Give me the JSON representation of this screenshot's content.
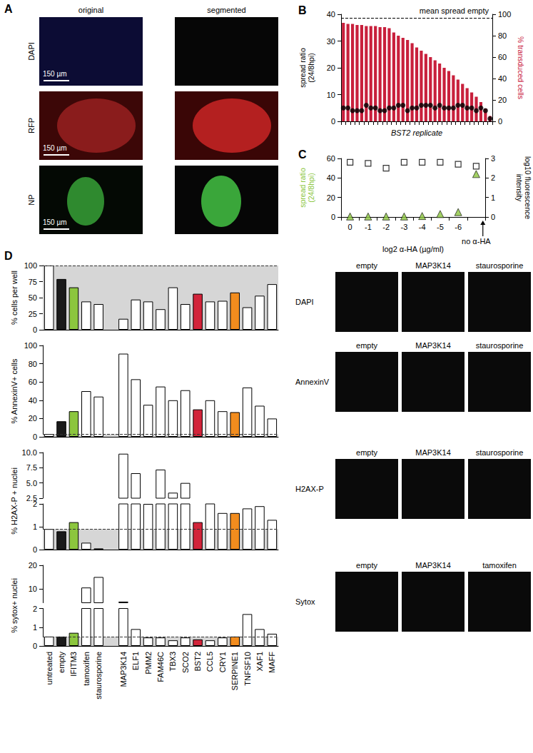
{
  "chart_data": [
    {
      "type": "bar",
      "title": "B",
      "xlabel": "BST2 replicate",
      "ylabel": "spread ratio\n(24/8hpi)",
      "y2label": "% transduced cells",
      "categories": [
        null,
        null,
        null,
        null,
        null,
        null,
        null,
        null,
        null,
        null,
        null,
        null,
        null,
        null,
        null,
        null,
        null,
        null,
        null,
        null,
        null,
        null,
        null,
        null,
        null,
        null,
        null,
        null,
        null,
        null,
        null,
        null,
        null
      ],
      "series": [
        {
          "type": "bar",
          "axis": "y2",
          "color": "#c8203c",
          "values": [
            92,
            91,
            91,
            90,
            90,
            89,
            89,
            89,
            88,
            88,
            87,
            83,
            80,
            78,
            76,
            73,
            69,
            66,
            63,
            60,
            57,
            54,
            50,
            47,
            43,
            39,
            35,
            31,
            27,
            23,
            18,
            12,
            5
          ]
        },
        {
          "type": "scatter",
          "marker": "circle",
          "color": "#000000",
          "values": [
            5,
            5,
            4,
            4,
            4,
            6,
            5,
            5,
            4,
            4,
            5,
            5,
            6,
            6,
            4,
            5,
            5,
            6,
            6,
            6,
            5,
            6,
            5,
            5,
            5,
            6,
            6,
            5,
            5,
            4,
            5,
            4,
            1
          ]
        }
      ],
      "ylim": [
        0,
        40
      ],
      "yticks": [
        0,
        10,
        20,
        30,
        40
      ],
      "y2lim": [
        0,
        100
      ],
      "y2ticks": [
        0,
        20,
        40,
        60,
        80,
        100
      ],
      "annotations": [
        {
          "label": "mean spread empty",
          "y": 38.5,
          "line_style": "dashed"
        }
      ],
      "grid": false
    },
    {
      "type": "scatter",
      "title": "C",
      "xlabel": "log2 α-HA (µg/ml)",
      "ylabel": "spread ratio\n(24/8hpi)",
      "y2label": "log10 fluorescence\nintensity",
      "categories": [
        "0",
        "-1",
        "-2",
        "-3",
        "-4",
        "-5",
        "-6",
        "no α-HA"
      ],
      "series": [
        {
          "marker": "triangle",
          "color": "#8cc63e",
          "values": [
            0.5,
            0.5,
            0.5,
            0.5,
            1,
            3,
            5,
            44
          ]
        },
        {
          "marker": "open_square",
          "color": "#000000",
          "axis": "y2",
          "values": [
            2.8,
            2.75,
            2.5,
            2.8,
            2.8,
            2.8,
            2.7,
            2.6
          ]
        }
      ],
      "ylim": [
        0,
        60
      ],
      "yticks": [
        0,
        20,
        40,
        60
      ],
      "y2lim": [
        0,
        3
      ],
      "y2ticks": [
        0,
        1,
        2,
        3
      ],
      "grid": false
    },
    {
      "type": "bar",
      "title": "D",
      "ylabel": "% cells per well",
      "categories": [
        "untreated",
        "empty",
        "IFITM3",
        "tamoxifen",
        "staurosporine",
        null,
        "MAP3K14",
        "ELF1",
        "PMM2",
        "FAM46C",
        "TBX3",
        "SCO2",
        "BST2",
        "CCL5",
        "CRY1",
        "SERPINE1",
        "TNFSF10",
        "XAF1",
        "MAFF"
      ],
      "values": [
        100,
        79,
        66,
        44,
        40,
        null,
        17,
        47,
        44,
        32,
        66,
        40,
        56,
        44,
        45,
        58,
        35,
        53,
        71
      ],
      "colors": [
        "#ffffff",
        "#1a1a1a",
        "#8cc63e",
        "#ffffff",
        "#ffffff",
        "#ffffff",
        "#ffffff",
        "#ffffff",
        "#ffffff",
        "#ffffff",
        "#ffffff",
        "#ffffff",
        "#d2243a",
        "#ffffff",
        "#ffffff",
        "#f28c1e",
        "#ffffff",
        "#ffffff",
        "#ffffff"
      ],
      "ylim": [
        0,
        100
      ],
      "yticks": [
        0,
        25,
        50,
        75,
        100
      ],
      "reference": 100,
      "tick_labels": "y",
      "grid": false
    },
    {
      "type": "bar",
      "ylabel": "% AnnexinV+ cells",
      "categories": [
        "untreated",
        "empty",
        "IFITM3",
        "tamoxifen",
        "staurosporine",
        null,
        "MAP3K14",
        "ELF1",
        "PMM2",
        "FAM46C",
        "TBX3",
        "SCO2",
        "BST2",
        "CCL5",
        "CRY1",
        "SERPINE1",
        "TNFSF10",
        "XAF1",
        "MAFF"
      ],
      "values": [
        3,
        17,
        28,
        50,
        44,
        null,
        91,
        63,
        35,
        55,
        40,
        51,
        30,
        40,
        28,
        27,
        54,
        34,
        20
      ],
      "colors": [
        "#ffffff",
        "#1a1a1a",
        "#8cc63e",
        "#ffffff",
        "#ffffff",
        "#ffffff",
        "#ffffff",
        "#ffffff",
        "#ffffff",
        "#ffffff",
        "#ffffff",
        "#ffffff",
        "#d2243a",
        "#ffffff",
        "#ffffff",
        "#f28c1e",
        "#ffffff",
        "#ffffff",
        "#ffffff"
      ],
      "ylim": [
        0,
        100
      ],
      "yticks": [
        0,
        20,
        40,
        60,
        80,
        100
      ],
      "reference": 3,
      "tick_labels": "y",
      "grid": false
    },
    {
      "type": "bar",
      "ylabel": "% H2AX-P + nuclei",
      "categories": [
        "untreated",
        "empty",
        "IFITM3",
        "tamoxifen",
        "staurosporine",
        null,
        "MAP3K14",
        "ELF1",
        "PMM2",
        "FAM46C",
        "TBX3",
        "SCO2",
        "BST2",
        "CCL5",
        "CRY1",
        "SERPINE1",
        "TNFSF10",
        "XAF1",
        "MAFF"
      ],
      "values": [
        0.9,
        0.8,
        1.2,
        0.3,
        0.05,
        null,
        9.8,
        6.6,
        2.0,
        7.2,
        3.4,
        5.0,
        1.2,
        2.4,
        1.6,
        1.6,
        1.8,
        1.9,
        1.3
      ],
      "colors": [
        "#ffffff",
        "#1a1a1a",
        "#8cc63e",
        "#ffffff",
        "#ffffff",
        "#ffffff",
        "#ffffff",
        "#ffffff",
        "#ffffff",
        "#ffffff",
        "#ffffff",
        "#ffffff",
        "#d2243a",
        "#ffffff",
        "#ffffff",
        "#f28c1e",
        "#ffffff",
        "#ffffff",
        "#ffffff"
      ],
      "ylim": [
        0,
        10
      ],
      "axis_break": [
        2,
        2.5
      ],
      "yticks": [
        0,
        1,
        2,
        2.5,
        {
          "value": 5,
          "label": "5.0"
        },
        7.5,
        {
          "value": 10,
          "label": "10.0"
        }
      ],
      "reference": 0.9,
      "tick_labels": "y",
      "grid": false
    },
    {
      "type": "bar",
      "ylabel": "% sytox+ nuclei",
      "categories": [
        "untreated",
        "empty",
        "IFITM3",
        "tamoxifen",
        "staurosporine",
        null,
        "MAP3K14",
        "ELF1",
        "PMM2",
        "FAM46C",
        "TBX3",
        "SCO2",
        "BST2",
        "CCL5",
        "CRY1",
        "SERPINE1",
        "TNFSF10",
        "XAF1",
        "MAFF"
      ],
      "values": [
        0.5,
        0.5,
        0.7,
        10.5,
        15,
        null,
        4.5,
        0.9,
        0.45,
        0.45,
        0.3,
        0.45,
        0.35,
        0.3,
        0.45,
        0.5,
        1.7,
        0.9,
        0.65
      ],
      "colors": [
        "#ffffff",
        "#1a1a1a",
        "#8cc63e",
        "#ffffff",
        "#ffffff",
        "#ffffff",
        "#ffffff",
        "#ffffff",
        "#ffffff",
        "#ffffff",
        "#ffffff",
        "#ffffff",
        "#d2243a",
        "#ffffff",
        "#ffffff",
        "#f28c1e",
        "#ffffff",
        "#ffffff",
        "#ffffff"
      ],
      "ylim": [
        0,
        20
      ],
      "axis_break": [
        2,
        4
      ],
      "yticks": [
        0,
        1,
        2,
        10,
        20
      ],
      "reference": 0.5,
      "grid": false
    }
  ],
  "panel_A": {
    "title": "A",
    "columns": [
      "original",
      "segmented"
    ],
    "rows": [
      "DAPI",
      "RFP",
      "NP"
    ],
    "scale_bar": "150 µm"
  },
  "panel_D_images": {
    "rows": [
      {
        "label": "DAPI",
        "columns": [
          "empty",
          "MAP3K14",
          "staurosporine"
        ]
      },
      {
        "label": "AnnexinV",
        "columns": [
          "empty",
          "MAP3K14",
          "staurosporine"
        ]
      },
      {
        "label": "H2AX-P",
        "columns": [
          "empty",
          "MAP3K14",
          "staurosporine"
        ]
      },
      {
        "label": "Sytox",
        "columns": [
          "empty",
          "MAP3K14",
          "tamoxifen"
        ]
      }
    ]
  }
}
